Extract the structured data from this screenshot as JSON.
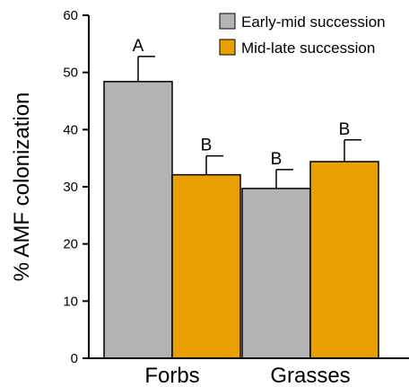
{
  "chart_data": {
    "type": "bar",
    "title": "",
    "xlabel": "",
    "ylabel": "% AMF colonization",
    "ylim": [
      0,
      60
    ],
    "yticks": [
      0,
      10,
      20,
      30,
      40,
      50,
      60
    ],
    "categories": [
      "Forbs",
      "Grasses"
    ],
    "legend_position": "top-right",
    "grid": false,
    "series": [
      {
        "name": "Early-mid succession",
        "color": "#b3b3b3",
        "values": [
          48.4,
          29.7
        ],
        "errors": [
          4.4,
          3.3
        ],
        "labels": [
          "A",
          "B"
        ]
      },
      {
        "name": "Mid-late succession",
        "color": "#e8a000",
        "values": [
          32.1,
          34.4
        ],
        "errors": [
          3.3,
          3.8
        ],
        "labels": [
          "B",
          "B"
        ]
      }
    ]
  }
}
